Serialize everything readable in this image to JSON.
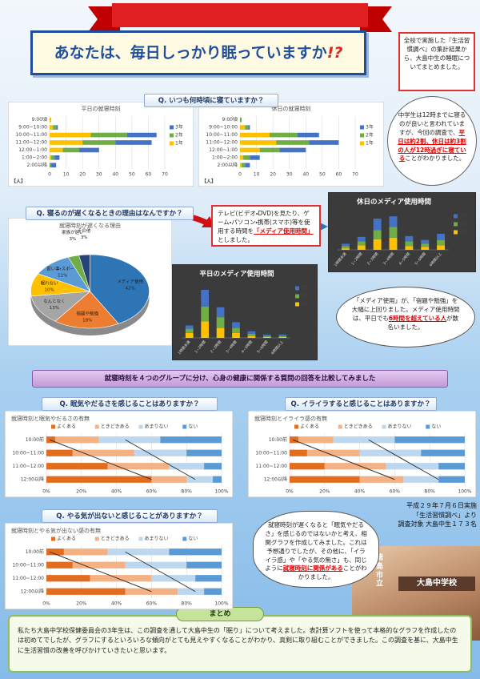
{
  "title": "あなたは、毎日しっかり眠っていますか",
  "title_mark": "!?",
  "intro": "全校で実施した『生活習慣調べ』の集計結果から、大島中生の睡眠についてまとめました。",
  "questions": [
    "Q. いつも何時頃に寝ていますか？",
    "Q. 寝るのが遅くなるときの理由はなんですか？",
    "Q. 眠気やだるさを感じることはありますか？",
    "Q. イライラすると感じることはありますか？",
    "Q. やる気が出ないと感じることがありますか？"
  ],
  "notes": [
    {
      "parts": [
        "中学生は12時までに寝るのが良いと言われていますが、今回の調査で、",
        "平日は約2割、休日は約3割の人が12時過ぎに寝ている",
        "ことがわかりました。"
      ]
    },
    {
      "parts": [
        "テレビ(ビデオ・DVD)を見たり、ゲーム・パソコン・携帯(スマホ)等を使用する時間を",
        "「メディア使用時間」",
        "としました。"
      ]
    },
    {
      "parts": [
        "「メディア使用」が、「宿題や勉強」を大幅に上回りました。メディア使用時間は、平日でも",
        "6時間を超えている人",
        "が数名いました。"
      ]
    },
    {
      "parts": [
        "就寝時刻が遅くなると「眠気やだるさ」を感じるのではないかと考え、相関グラフを作成してみました。これは予想通りでしたが、その他に、「イライラ感」や「やる気の無さ」も、同じように",
        "就寝時刻に関係がある",
        "ことがわかりました。"
      ]
    }
  ],
  "banner": "就寝時刻を４つのグループに分け、心身の健康に関係する質問の回答を比較してみました",
  "survey": [
    "平成２９年７月６日実施",
    "「生活習慣調べ」より",
    "調査対象 大島中生１７３名"
  ],
  "sign": [
    "徳島市立",
    "大島中学校"
  ],
  "summary": {
    "heading": "まとめ",
    "text": "私たち大島中学校保健委員会の3年生は、この調査を通して大島中生の「眠り」について考えました。表計算ソフトを使って本格的なグラフを作成したのは初めてでしたが、グラフにするといろいろな傾向がとても見えやすくなることがわかり、真剣に取り組むことができました。この調査を基に、大島中生に生活習慣の改善を呼びかけていきたいと思います。"
  },
  "chart_data": [
    {
      "type": "hbar",
      "title": "平日の就寝時刻",
      "unit_label": "【人】",
      "legend": "right",
      "categories": [
        "9:00頃",
        "9:00~10:00",
        "10:00~11:00",
        "11:00~12:00",
        "12:00~1:00",
        "1:00~2:00",
        "2:00以降"
      ],
      "series": [
        {
          "name": "1年",
          "color": "#ffc000",
          "values": [
            1,
            2,
            25,
            20,
            8,
            1,
            0
          ]
        },
        {
          "name": "2年",
          "color": "#70ad47",
          "values": [
            0,
            2,
            22,
            20,
            10,
            2,
            1
          ]
        },
        {
          "name": "3年",
          "color": "#4472c4",
          "values": [
            0,
            1,
            18,
            22,
            12,
            3,
            3
          ]
        }
      ],
      "xlim": [
        0,
        70
      ],
      "xticks": [
        0,
        10,
        20,
        30,
        40,
        50,
        60,
        70
      ]
    },
    {
      "type": "hbar",
      "title": "休日の就寝時刻",
      "unit_label": "【人】",
      "legend": "right",
      "categories": [
        "9:00頃",
        "9:00~10:00",
        "10:00~11:00",
        "11:00~12:00",
        "12:00~1:00",
        "1:00~2:00",
        "2:00以降"
      ],
      "series": [
        {
          "name": "1年",
          "color": "#ffc000",
          "values": [
            0,
            3,
            18,
            22,
            12,
            2,
            1
          ]
        },
        {
          "name": "2年",
          "color": "#70ad47",
          "values": [
            1,
            2,
            17,
            20,
            12,
            4,
            2
          ]
        },
        {
          "name": "3年",
          "color": "#4472c4",
          "values": [
            0,
            1,
            13,
            18,
            16,
            6,
            3
          ]
        }
      ],
      "xlim": [
        0,
        70
      ],
      "xticks": [
        0,
        10,
        20,
        30,
        40,
        50,
        60,
        70
      ]
    },
    {
      "type": "pie",
      "title": "就寝時刻が遅くなる理由",
      "categories": [
        "メディア使用",
        "宿題や勉強",
        "なんとなく",
        "眠れない",
        "習い事・スポーツ",
        "家族が遅い",
        "その他"
      ],
      "values": [
        42,
        18,
        13,
        10,
        11,
        3,
        3
      ],
      "value_labels": [
        "42%",
        "18%",
        "13%",
        "10%",
        "11%",
        "3%",
        "3%"
      ],
      "colors": [
        "#2e75b6",
        "#ed7d31",
        "#a5a5a5",
        "#ffc000",
        "#5b9bd5",
        "#70ad47",
        "#264478"
      ]
    },
    {
      "type": "vbar",
      "title": "休日のメディア使用時間",
      "legend": "right",
      "categories": [
        "1時間未満",
        "1~2時間",
        "2~3時間",
        "3~4時間",
        "4~5時間",
        "5~6時間",
        "6時間以上"
      ],
      "series": [
        {
          "name": "1年",
          "color": "#ffc000",
          "values": [
            2,
            6,
            14,
            16,
            5,
            4,
            6
          ]
        },
        {
          "name": "2年",
          "color": "#70ad47",
          "values": [
            3,
            5,
            12,
            14,
            6,
            4,
            7
          ]
        },
        {
          "name": "3年",
          "color": "#4472c4",
          "values": [
            3,
            6,
            15,
            14,
            7,
            5,
            8
          ]
        }
      ]
    },
    {
      "type": "vbar",
      "title": "平日のメディア使用時間",
      "legend": "right",
      "categories": [
        "1時間未満",
        "1~2時間",
        "2~3時間",
        "3~4時間",
        "4~5時間",
        "5~6時間",
        "6時間以上"
      ],
      "series": [
        {
          "name": "1年",
          "color": "#ffc000",
          "values": [
            6,
            20,
            12,
            6,
            2,
            1,
            1
          ]
        },
        {
          "name": "2年",
          "color": "#70ad47",
          "values": [
            5,
            18,
            13,
            6,
            3,
            1,
            1
          ]
        },
        {
          "name": "3年",
          "color": "#4472c4",
          "values": [
            4,
            20,
            12,
            7,
            3,
            2,
            2
          ]
        }
      ]
    },
    {
      "type": "hbar",
      "title": "就寝時刻と眠気やだるさの有無",
      "legend": "top",
      "categories": [
        "10:00前",
        "10:00~11:00",
        "11:00~12:00",
        "12:00以降"
      ],
      "series": [
        {
          "name": "よくある",
          "color": "#e46c1f",
          "values": [
            5,
            15,
            35,
            60
          ]
        },
        {
          "name": "ときどきある",
          "color": "#f4b183",
          "values": [
            25,
            35,
            35,
            20
          ]
        },
        {
          "name": "あまりない",
          "color": "#bdd7ee",
          "values": [
            35,
            30,
            20,
            15
          ]
        },
        {
          "name": "ない",
          "color": "#5b9bd5",
          "values": [
            35,
            20,
            10,
            5
          ]
        }
      ],
      "xlim": [
        0,
        100
      ],
      "xticks": [
        {
          "value": 0,
          "label": "0%"
        },
        {
          "value": 20,
          "label": "20%"
        },
        {
          "value": 40,
          "label": "40%"
        },
        {
          "value": 60,
          "label": "60%"
        },
        {
          "value": 80,
          "label": "80%"
        },
        {
          "value": 100,
          "label": "100%"
        }
      ]
    },
    {
      "type": "hbar",
      "title": "就寝時刻とイライラ感の有無",
      "legend": "top",
      "categories": [
        "10:00前",
        "10:00~11:00",
        "11:00~12:00",
        "12:00以降"
      ],
      "series": [
        {
          "name": "よくある",
          "color": "#e46c1f",
          "values": [
            5,
            10,
            20,
            40
          ]
        },
        {
          "name": "ときどきある",
          "color": "#f4b183",
          "values": [
            20,
            30,
            35,
            25
          ]
        },
        {
          "name": "あまりない",
          "color": "#bdd7ee",
          "values": [
            35,
            35,
            30,
            20
          ]
        },
        {
          "name": "ない",
          "color": "#5b9bd5",
          "values": [
            40,
            25,
            15,
            15
          ]
        }
      ],
      "xlim": [
        0,
        100
      ],
      "xticks": [
        {
          "value": 0,
          "label": "0%"
        },
        {
          "value": 20,
          "label": "20%"
        },
        {
          "value": 40,
          "label": "40%"
        },
        {
          "value": 60,
          "label": "60%"
        },
        {
          "value": 80,
          "label": "80%"
        },
        {
          "value": 100,
          "label": "100%"
        }
      ]
    },
    {
      "type": "hbar",
      "title": "就寝時刻とやる気が出ない感の有無",
      "legend": "top",
      "categories": [
        "10:00前",
        "10:00~11:00",
        "11:00~12:00",
        "12:00以降"
      ],
      "series": [
        {
          "name": "よくある",
          "color": "#e46c1f",
          "values": [
            10,
            15,
            25,
            45
          ]
        },
        {
          "name": "ときどきある",
          "color": "#f4b183",
          "values": [
            25,
            30,
            35,
            30
          ]
        },
        {
          "name": "あまりない",
          "color": "#bdd7ee",
          "values": [
            35,
            35,
            25,
            15
          ]
        },
        {
          "name": "ない",
          "color": "#5b9bd5",
          "values": [
            30,
            20,
            15,
            10
          ]
        }
      ],
      "xlim": [
        0,
        100
      ],
      "xticks": [
        {
          "value": 0,
          "label": "0%"
        },
        {
          "value": 20,
          "label": "20%"
        },
        {
          "value": 40,
          "label": "40%"
        },
        {
          "value": 60,
          "label": "60%"
        },
        {
          "value": 80,
          "label": "80%"
        },
        {
          "value": 100,
          "label": "100%"
        }
      ]
    }
  ]
}
